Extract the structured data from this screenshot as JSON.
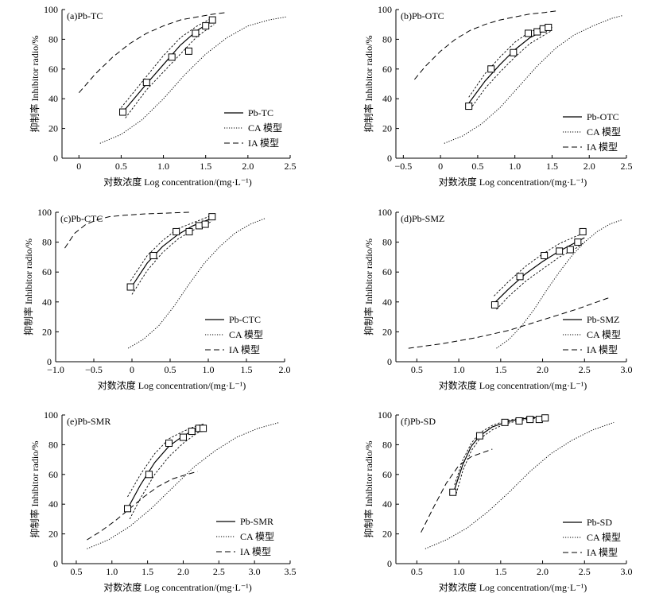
{
  "chart_data": [
    {
      "type": "line",
      "title": "(a)Pb-TC",
      "xlabel": "对数浓度 Log concentration/(mg·L⁻¹)",
      "ylabel": "抑制率 Inhibitor radio/%",
      "xlim": [
        -0.2,
        2.5
      ],
      "ylim": [
        0,
        100
      ],
      "xticks": [
        0,
        0.5,
        1.0,
        1.5,
        2.0,
        2.5
      ],
      "xtick_labels": [
        "0",
        "0.5",
        "1.0",
        "1.5",
        "2.0",
        "2.5"
      ],
      "yticks": [
        0,
        20,
        40,
        60,
        80,
        100
      ],
      "ytick_labels": [
        "0",
        "20",
        "40",
        "60",
        "80",
        "100"
      ],
      "legend_position": "bottom-right",
      "series": [
        {
          "name": "Pb-TC",
          "style": "solid",
          "x": [
            0.52,
            0.8,
            1.0,
            1.2,
            1.4,
            1.6
          ],
          "y": [
            31,
            50,
            63,
            76,
            86,
            93
          ]
        },
        {
          "style": "upper-band",
          "x": [
            0.5,
            0.8,
            1.0,
            1.2,
            1.4,
            1.6
          ],
          "y": [
            34,
            55,
            69,
            81,
            89,
            95
          ]
        },
        {
          "style": "lower-band",
          "x": [
            0.55,
            0.8,
            1.0,
            1.2,
            1.4,
            1.6
          ],
          "y": [
            27,
            46,
            58,
            70,
            82,
            90
          ]
        },
        {
          "name": "CA 模型",
          "style": "dotted",
          "x": [
            0.25,
            0.5,
            0.75,
            1.0,
            1.25,
            1.5,
            1.75,
            2.0,
            2.25,
            2.45
          ],
          "y": [
            10,
            16,
            26,
            40,
            56,
            70,
            81,
            89,
            93,
            95
          ]
        },
        {
          "name": "IA 模型",
          "style": "dashed",
          "x": [
            0.0,
            0.2,
            0.4,
            0.6,
            0.8,
            1.0,
            1.2,
            1.4,
            1.6,
            1.75
          ],
          "y": [
            44,
            57,
            68,
            77,
            84,
            89,
            93,
            95,
            97,
            98
          ]
        }
      ],
      "markers": {
        "x": [
          0.52,
          0.8,
          1.1,
          1.3,
          1.38,
          1.5,
          1.58
        ],
        "y": [
          31,
          51,
          68,
          72,
          84,
          89,
          93
        ]
      }
    },
    {
      "type": "line",
      "title": "(b)Pb-OTC",
      "xlabel": "对数浓度 Log concentration/(mg·L⁻¹)",
      "ylabel": "抑制率 Inhibitor radio/%",
      "xlim": [
        -0.6,
        2.5
      ],
      "ylim": [
        0,
        100
      ],
      "xticks": [
        -0.5,
        0,
        0.5,
        1.0,
        1.5,
        2.0,
        2.5
      ],
      "xtick_labels": [
        "−0.5",
        "0",
        "0.5",
        "1.0",
        "1.5",
        "2.0",
        "2.5"
      ],
      "yticks": [
        0,
        20,
        40,
        60,
        80,
        100
      ],
      "ytick_labels": [
        "0",
        "20",
        "40",
        "60",
        "80",
        "100"
      ],
      "legend_position": "bottom-right",
      "series": [
        {
          "name": "Pb-OTC",
          "style": "solid",
          "x": [
            0.38,
            0.6,
            0.8,
            1.0,
            1.2,
            1.4,
            1.5
          ],
          "y": [
            37,
            52,
            63,
            73,
            81,
            86,
            88
          ]
        },
        {
          "style": "upper-band",
          "x": [
            0.38,
            0.6,
            0.8,
            1.0,
            1.2,
            1.4,
            1.5
          ],
          "y": [
            41,
            57,
            68,
            78,
            85,
            89,
            90
          ]
        },
        {
          "style": "lower-band",
          "x": [
            0.4,
            0.6,
            0.8,
            1.0,
            1.2,
            1.4,
            1.5
          ],
          "y": [
            33,
            47,
            58,
            68,
            77,
            83,
            86
          ]
        },
        {
          "name": "CA 模型",
          "style": "dotted",
          "x": [
            0.05,
            0.3,
            0.55,
            0.8,
            1.05,
            1.3,
            1.55,
            1.8,
            2.05,
            2.3,
            2.45
          ],
          "y": [
            10,
            15,
            23,
            34,
            48,
            62,
            74,
            83,
            89,
            94,
            96
          ]
        },
        {
          "name": "IA 模型",
          "style": "dashed",
          "x": [
            -0.35,
            -0.2,
            0.0,
            0.2,
            0.4,
            0.6,
            0.8,
            1.0,
            1.2,
            1.4,
            1.55
          ],
          "y": [
            53,
            62,
            72,
            80,
            86,
            90,
            93,
            95,
            97,
            98,
            99
          ]
        }
      ],
      "markers": {
        "x": [
          0.38,
          0.68,
          0.98,
          1.18,
          1.3,
          1.38,
          1.45
        ],
        "y": [
          35,
          60,
          71,
          84,
          85,
          87,
          88
        ]
      }
    },
    {
      "type": "line",
      "title": "(c)Pb-CTC",
      "xlabel": "对数浓度 Log concentration/(mg·L⁻¹)",
      "ylabel": "抑制率 Inhibitor radio/%",
      "xlim": [
        -1.0,
        2.0
      ],
      "ylim": [
        0,
        100
      ],
      "xticks": [
        -1.0,
        -0.5,
        0,
        0.5,
        1.0,
        1.5,
        2.0
      ],
      "xtick_labels": [
        "−1.0",
        "−0.5",
        "0",
        "0.5",
        "1.0",
        "1.5",
        "2.0"
      ],
      "yticks": [
        0,
        20,
        40,
        60,
        80,
        100
      ],
      "ytick_labels": [
        "0",
        "20",
        "40",
        "60",
        "80",
        "100"
      ],
      "legend_position": "bottom-right",
      "series": [
        {
          "name": "Pb-CTC",
          "style": "solid",
          "x": [
            -0.02,
            0.2,
            0.4,
            0.6,
            0.8,
            1.05
          ],
          "y": [
            49,
            66,
            77,
            85,
            91,
            96
          ]
        },
        {
          "style": "upper-band",
          "x": [
            -0.02,
            0.2,
            0.4,
            0.6,
            0.8,
            1.05
          ],
          "y": [
            54,
            71,
            81,
            89,
            93,
            98
          ]
        },
        {
          "style": "lower-band",
          "x": [
            0.0,
            0.2,
            0.4,
            0.6,
            0.8,
            1.05
          ],
          "y": [
            45,
            61,
            73,
            82,
            88,
            94
          ]
        },
        {
          "name": "CA 模型",
          "style": "dotted",
          "x": [
            -0.05,
            0.15,
            0.35,
            0.55,
            0.75,
            0.95,
            1.15,
            1.35,
            1.55,
            1.75
          ],
          "y": [
            9,
            15,
            24,
            37,
            52,
            66,
            77,
            86,
            92,
            96
          ]
        },
        {
          "name": "IA 模型",
          "style": "dashed",
          "x": [
            -0.88,
            -0.75,
            -0.6,
            -0.45,
            -0.3,
            -0.1,
            0.2,
            0.5,
            0.75
          ],
          "y": [
            76,
            86,
            92,
            95,
            97,
            98,
            99,
            99.5,
            100
          ]
        }
      ],
      "markers": {
        "x": [
          -0.02,
          0.28,
          0.58,
          0.75,
          0.88,
          0.96,
          1.05
        ],
        "y": [
          50,
          71,
          87,
          87,
          91,
          92,
          97
        ]
      }
    },
    {
      "type": "line",
      "title": "(d)Pb-SMZ",
      "xlabel": "对数浓度 Log concentration/(mg·L⁻¹)",
      "ylabel": "抑制率 Inhibitor radio/%",
      "xlim": [
        0.25,
        3.0
      ],
      "ylim": [
        0,
        100
      ],
      "xticks": [
        0.5,
        1.0,
        1.5,
        2.0,
        2.5,
        3.0
      ],
      "xtick_labels": [
        "0.5",
        "1.0",
        "1.5",
        "2.0",
        "2.5",
        "3.0"
      ],
      "yticks": [
        0,
        20,
        40,
        60,
        80,
        100
      ],
      "ytick_labels": [
        "0",
        "20",
        "40",
        "60",
        "80",
        "100"
      ],
      "legend_position": "bottom-right",
      "series": [
        {
          "name": "Pb-SMZ",
          "style": "solid",
          "x": [
            1.42,
            1.6,
            1.8,
            2.0,
            2.2,
            2.4,
            2.5
          ],
          "y": [
            39,
            49,
            59,
            67,
            74,
            80,
            83
          ]
        },
        {
          "style": "upper-band",
          "x": [
            1.42,
            1.6,
            1.8,
            2.0,
            2.2,
            2.4,
            2.5
          ],
          "y": [
            44,
            54,
            64,
            72,
            79,
            84,
            86
          ]
        },
        {
          "style": "lower-band",
          "x": [
            1.45,
            1.6,
            1.8,
            2.0,
            2.2,
            2.4,
            2.5
          ],
          "y": [
            35,
            44,
            54,
            62,
            70,
            76,
            80
          ]
        },
        {
          "name": "CA 模型",
          "style": "dotted",
          "x": [
            1.45,
            1.6,
            1.75,
            1.9,
            2.05,
            2.2,
            2.35,
            2.5,
            2.65,
            2.8,
            2.95
          ],
          "y": [
            9,
            15,
            24,
            35,
            48,
            60,
            71,
            80,
            87,
            92,
            95
          ]
        },
        {
          "name": "IA 模型",
          "style": "dashed",
          "x": [
            0.4,
            0.8,
            1.2,
            1.6,
            2.0,
            2.4,
            2.8
          ],
          "y": [
            9,
            12,
            16,
            21,
            28,
            35,
            43
          ]
        }
      ],
      "markers": {
        "x": [
          1.43,
          1.73,
          2.02,
          2.2,
          2.33,
          2.42,
          2.48
        ],
        "y": [
          38,
          57,
          71,
          74,
          75,
          80,
          87
        ]
      }
    },
    {
      "type": "line",
      "title": "(e)Pb-SMR",
      "xlabel": "对数浓度 Log concentration/(mg·L⁻¹)",
      "ylabel": "抑制率 Inhibitor radio/%",
      "xlim": [
        0.3,
        3.5
      ],
      "ylim": [
        0,
        100
      ],
      "xticks": [
        0.5,
        1.0,
        1.5,
        2.0,
        2.5,
        3.0,
        3.5
      ],
      "xtick_labels": [
        "0.5",
        "1.0",
        "1.5",
        "2.0",
        "2.5",
        "3.0",
        "3.5"
      ],
      "yticks": [
        0,
        20,
        40,
        60,
        80,
        100
      ],
      "ytick_labels": [
        "0",
        "20",
        "40",
        "60",
        "80",
        "100"
      ],
      "legend_position": "bottom-right",
      "series": [
        {
          "name": "Pb-SMR",
          "style": "solid",
          "x": [
            1.22,
            1.4,
            1.6,
            1.8,
            2.0,
            2.2,
            2.3
          ],
          "y": [
            37,
            53,
            68,
            79,
            86,
            91,
            92
          ]
        },
        {
          "style": "upper-band",
          "x": [
            1.22,
            1.4,
            1.6,
            1.8,
            2.0,
            2.2,
            2.3
          ],
          "y": [
            45,
            60,
            74,
            84,
            89,
            93,
            94
          ]
        },
        {
          "style": "lower-band",
          "x": [
            1.25,
            1.4,
            1.6,
            1.8,
            2.0,
            2.2,
            2.3
          ],
          "y": [
            30,
            44,
            60,
            72,
            81,
            88,
            90
          ]
        },
        {
          "name": "CA 模型",
          "style": "dotted",
          "x": [
            0.65,
            0.95,
            1.25,
            1.55,
            1.85,
            2.15,
            2.45,
            2.75,
            3.05,
            3.35
          ],
          "y": [
            10,
            16,
            25,
            37,
            51,
            65,
            76,
            85,
            91,
            95
          ]
        },
        {
          "name": "IA 模型",
          "style": "dashed",
          "x": [
            0.65,
            0.85,
            1.05,
            1.25,
            1.45,
            1.65,
            1.85,
            2.05,
            2.2
          ],
          "y": [
            16,
            22,
            29,
            37,
            45,
            52,
            57,
            60,
            62
          ]
        }
      ],
      "markers": {
        "x": [
          1.22,
          1.52,
          1.8,
          2.0,
          2.12,
          2.22,
          2.28
        ],
        "y": [
          37,
          60,
          81,
          85,
          89,
          91,
          91
        ]
      }
    },
    {
      "type": "line",
      "title": "(f)Pb-SD",
      "xlabel": "对数浓度 Log concentration/(mg·L⁻¹)",
      "ylabel": "抑制率 Inhibitor radio/%",
      "xlim": [
        0.25,
        3.0
      ],
      "ylim": [
        0,
        100
      ],
      "xticks": [
        0.5,
        1.0,
        1.5,
        2.0,
        2.5,
        3.0
      ],
      "xtick_labels": [
        "0.5",
        "1.0",
        "1.5",
        "2.0",
        "2.5",
        "3.0"
      ],
      "yticks": [
        0,
        20,
        40,
        60,
        80,
        100
      ],
      "ytick_labels": [
        "0",
        "20",
        "40",
        "60",
        "80",
        "100"
      ],
      "legend_position": "bottom-right",
      "series": [
        {
          "name": "Pb-SD",
          "style": "solid",
          "x": [
            0.95,
            1.05,
            1.15,
            1.25,
            1.4,
            1.55,
            1.7,
            1.85,
            2.03
          ],
          "y": [
            50,
            67,
            79,
            86,
            92,
            95,
            97,
            98,
            98.5
          ]
        },
        {
          "style": "upper-band",
          "x": [
            0.95,
            1.05,
            1.15,
            1.25,
            1.4,
            1.55,
            1.7,
            1.85,
            2.03
          ],
          "y": [
            53,
            70,
            81,
            88,
            93,
            96,
            97.5,
            98.5,
            99
          ]
        },
        {
          "style": "lower-band",
          "x": [
            0.97,
            1.05,
            1.15,
            1.25,
            1.4,
            1.55,
            1.7,
            1.85,
            2.03
          ],
          "y": [
            47,
            63,
            76,
            84,
            90,
            94,
            96,
            97.5,
            98
          ]
        },
        {
          "name": "CA 模型",
          "style": "dotted",
          "x": [
            0.6,
            0.85,
            1.1,
            1.35,
            1.6,
            1.85,
            2.1,
            2.35,
            2.6,
            2.85
          ],
          "y": [
            10,
            16,
            24,
            35,
            48,
            62,
            74,
            83,
            90,
            95
          ]
        },
        {
          "name": "IA 模型",
          "style": "dashed",
          "x": [
            0.55,
            0.7,
            0.85,
            1.0,
            1.15,
            1.3,
            1.4
          ],
          "y": [
            21,
            38,
            54,
            66,
            72,
            75,
            77
          ]
        }
      ],
      "markers": {
        "x": [
          0.93,
          1.25,
          1.55,
          1.72,
          1.85,
          1.96,
          2.03
        ],
        "y": [
          48,
          86,
          95,
          96,
          97,
          97,
          98
        ]
      }
    }
  ]
}
